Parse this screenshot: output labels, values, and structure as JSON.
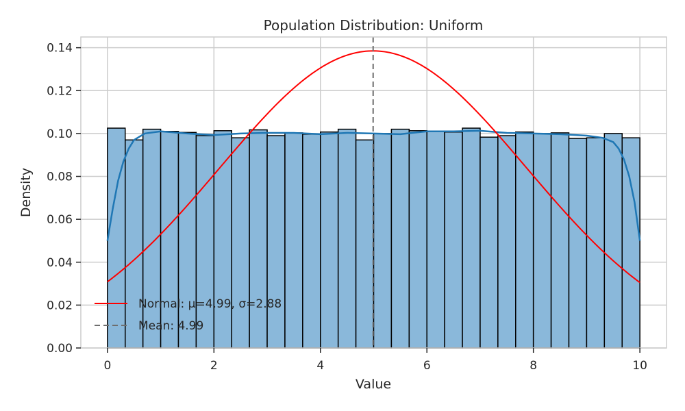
{
  "chart_data": {
    "type": "bar",
    "title": "Population Distribution: Uniform",
    "xlabel": "Value",
    "ylabel": "Density",
    "xlim": [
      -0.5,
      10.5
    ],
    "ylim": [
      0,
      0.145
    ],
    "xticks": [
      0,
      2,
      4,
      6,
      8,
      10
    ],
    "yticks": [
      0.0,
      0.02,
      0.04,
      0.06,
      0.08,
      0.1,
      0.12,
      0.14
    ],
    "ytick_labels": [
      "0.00",
      "0.02",
      "0.04",
      "0.06",
      "0.08",
      "0.10",
      "0.12",
      "0.14"
    ],
    "grid": true,
    "legend_position": "lower-left",
    "histogram": {
      "bin_start": 0,
      "bin_end": 10,
      "densities": [
        0.1025,
        0.097,
        0.102,
        0.101,
        0.1005,
        0.099,
        0.1013,
        0.098,
        0.1017,
        0.099,
        0.1003,
        0.0997,
        0.1007,
        0.102,
        0.097,
        0.1,
        0.102,
        0.1013,
        0.101,
        0.1007,
        0.1025,
        0.0983,
        0.099,
        0.1007,
        0.1,
        0.1003,
        0.0977,
        0.098,
        0.1,
        0.098
      ],
      "fill_color": "#8ab8da",
      "edge_color": "#000000"
    },
    "kde": {
      "color": "#1f77b4",
      "x": [
        0,
        0.1,
        0.2,
        0.3,
        0.4,
        0.5,
        0.7,
        1.0,
        1.5,
        2.0,
        2.5,
        3.0,
        3.5,
        4.0,
        4.5,
        5.0,
        5.5,
        6.0,
        6.5,
        7.0,
        7.5,
        8.0,
        8.5,
        9.0,
        9.3,
        9.5,
        9.6,
        9.7,
        9.8,
        9.9,
        10.0
      ],
      "y": [
        0.05,
        0.065,
        0.078,
        0.087,
        0.093,
        0.097,
        0.1,
        0.101,
        0.1,
        0.0993,
        0.1,
        0.1003,
        0.1003,
        0.0997,
        0.1003,
        0.1,
        0.0997,
        0.101,
        0.101,
        0.1013,
        0.1003,
        0.1,
        0.0997,
        0.099,
        0.098,
        0.096,
        0.093,
        0.088,
        0.08,
        0.068,
        0.05
      ]
    },
    "series": [
      {
        "name": "Normal: μ=4.99, σ=2.88",
        "type": "line",
        "color": "#ff0000",
        "mu": 4.99,
        "sigma": 2.88,
        "x_range": [
          0,
          10
        ]
      },
      {
        "name": "Mean: 4.99",
        "type": "vline",
        "color": "#6e6e6e",
        "dash": true,
        "x": 4.99
      }
    ]
  }
}
